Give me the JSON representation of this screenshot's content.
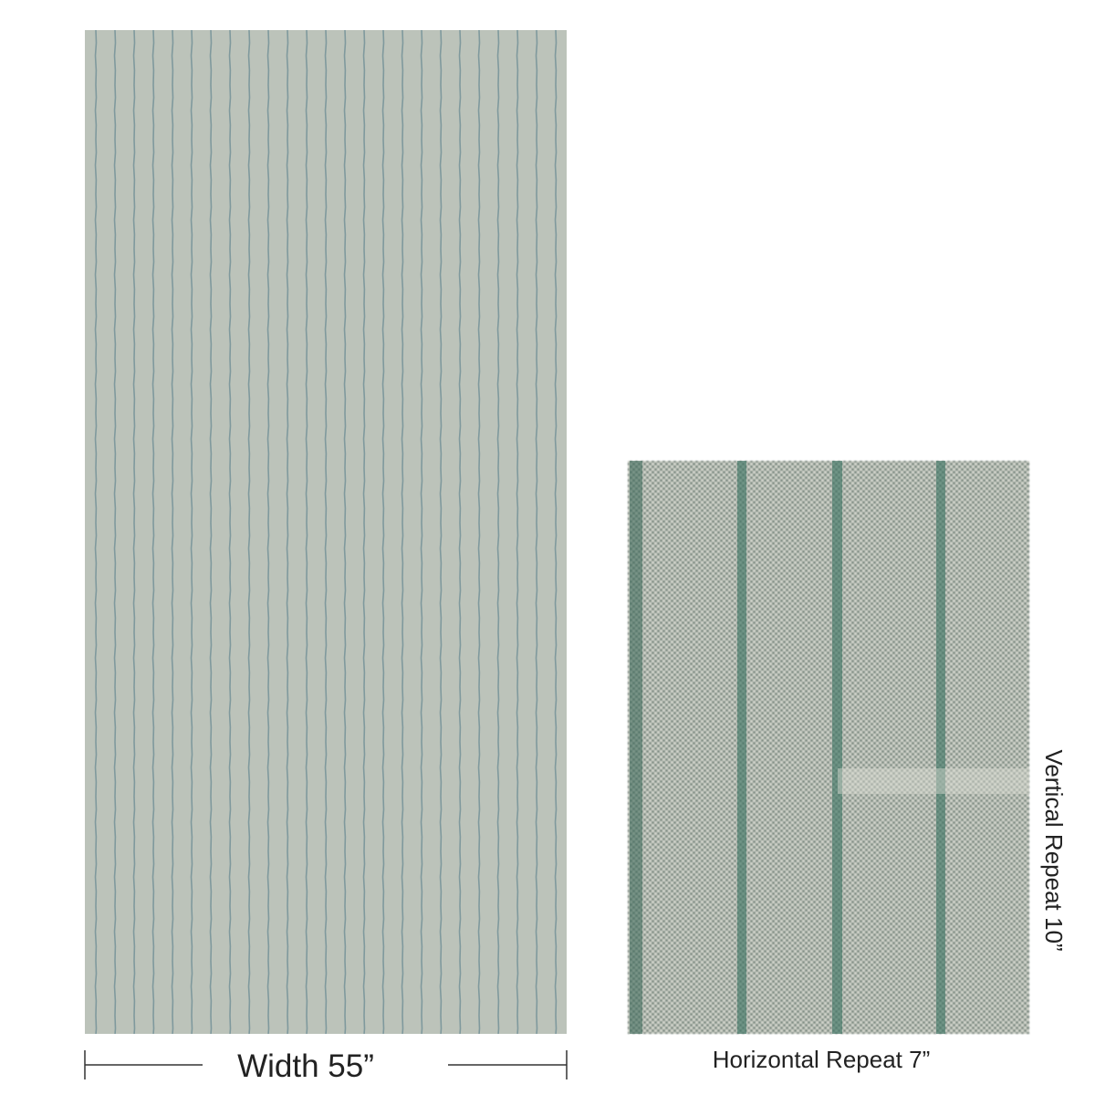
{
  "labels": {
    "width": "Width 55”",
    "horizontal_repeat": "Horizontal Repeat 7”",
    "vertical_repeat": "Vertical Repeat 10”"
  }
}
